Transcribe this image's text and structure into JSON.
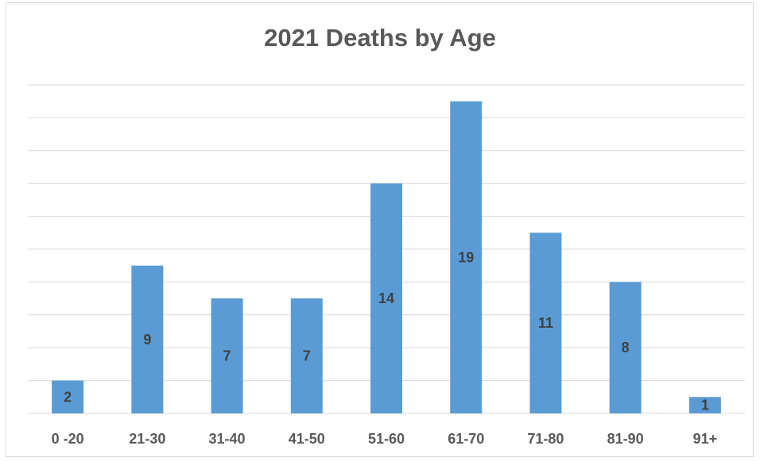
{
  "chart_data": {
    "type": "bar",
    "title": "2021 Deaths by Age",
    "xlabel": "",
    "ylabel": "",
    "categories": [
      "0 -20",
      "21-30",
      "31-40",
      "41-50",
      "51-60",
      "61-70",
      "71-80",
      "81-90",
      "91+"
    ],
    "values": [
      2,
      9,
      7,
      7,
      14,
      19,
      11,
      8,
      1
    ],
    "ylim": [
      0,
      20
    ],
    "grid": true,
    "legend": "none",
    "bar_color": "#5b9bd5",
    "gridline_color": "#d9d9d9",
    "text_color": "#595959"
  }
}
